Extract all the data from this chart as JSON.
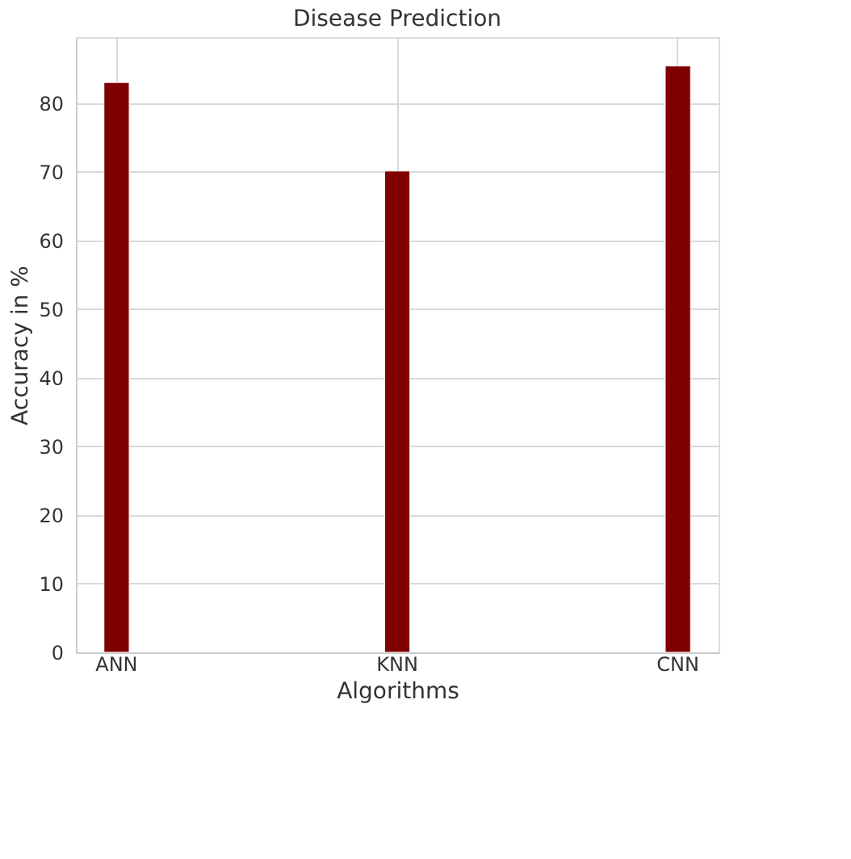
{
  "chart_data": {
    "type": "bar",
    "title": "Disease Prediction",
    "xlabel": "Algorithms",
    "ylabel": "Accuracy in %",
    "categories": [
      "ANN",
      "KNN",
      "CNN"
    ],
    "values": [
      83.0,
      70.1,
      85.4
    ],
    "color": "#800000",
    "ylim": [
      0,
      89.6
    ],
    "yticks": [
      0,
      10,
      20,
      30,
      40,
      50,
      60,
      70,
      80
    ],
    "grid": true
  }
}
